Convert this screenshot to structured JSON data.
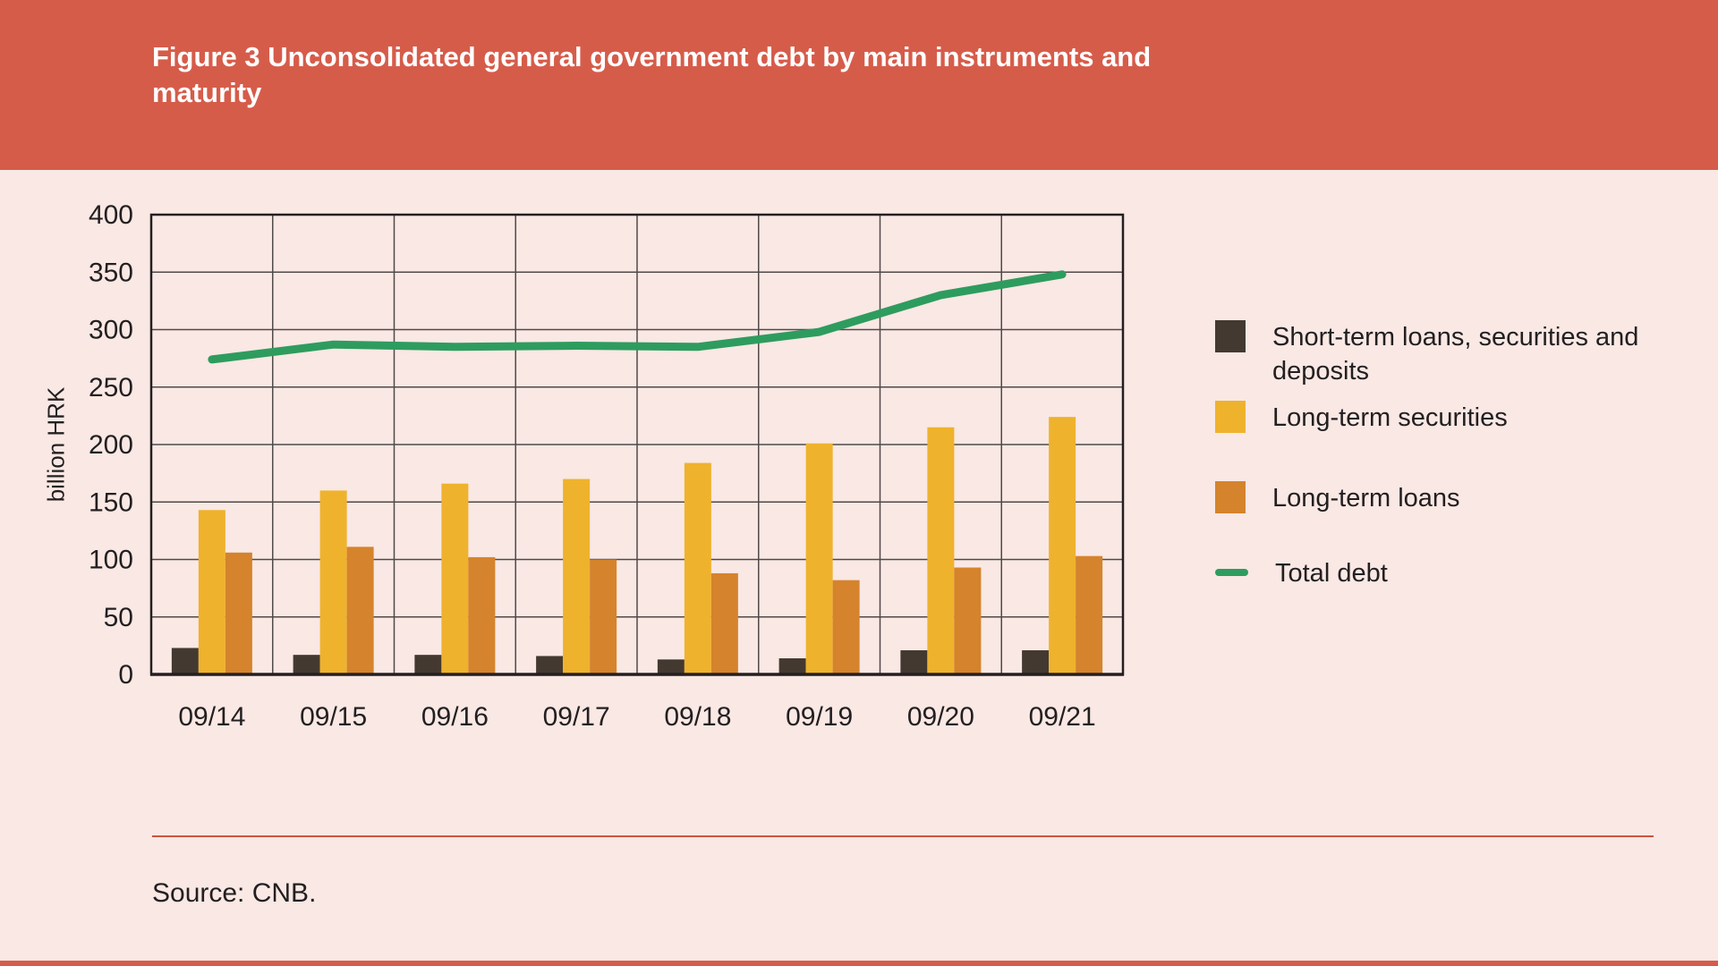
{
  "header": {
    "title": "Figure 3 Unconsolidated general government debt by main instruments and\nmaturity"
  },
  "y_axis": {
    "title": "billion HRK"
  },
  "source": {
    "text": "Source: CNB."
  },
  "colors": {
    "header_band": "#d65c4a",
    "page_background": "#f9e8e4",
    "grid": "#4f4a48",
    "text": "#231f20",
    "short_term": "#443930",
    "long_term_securities": "#efb22d",
    "long_term_loans": "#d5832c",
    "total_debt": "#2e9c5e",
    "source_rule": "#cc5340",
    "title_text": "#ffffff"
  },
  "legend": [
    {
      "label": "Short-term loans, securities and deposits",
      "kind": "swatch",
      "color": "#443930"
    },
    {
      "label": "Long-term securities",
      "kind": "swatch",
      "color": "#efb22d"
    },
    {
      "label": "Long-term loans",
      "kind": "swatch",
      "color": "#d5832c"
    },
    {
      "label": "Total debt",
      "kind": "line",
      "color": "#2e9c5e"
    }
  ],
  "chart_data": {
    "type": "bar",
    "title": "Figure 3 Unconsolidated general government debt by main instruments and maturity",
    "xlabel": "",
    "ylabel": "billion HRK",
    "ylim": [
      0,
      400
    ],
    "ytick_step": 50,
    "grid": true,
    "legend_position": "right",
    "categories": [
      "09/14",
      "09/15",
      "09/16",
      "09/17",
      "09/18",
      "09/19",
      "09/20",
      "09/21"
    ],
    "series": [
      {
        "name": "Short-term loans, securities and deposits",
        "type": "bar",
        "color": "#443930",
        "values": [
          23,
          17,
          17,
          16,
          13,
          14,
          21,
          21
        ]
      },
      {
        "name": "Long-term securities",
        "type": "bar",
        "color": "#efb22d",
        "values": [
          143,
          160,
          166,
          170,
          184,
          201,
          215,
          224
        ]
      },
      {
        "name": "Long-term loans",
        "type": "bar",
        "color": "#d5832c",
        "values": [
          106,
          111,
          102,
          100,
          88,
          82,
          93,
          103
        ]
      },
      {
        "name": "Total debt",
        "type": "line",
        "color": "#2e9c5e",
        "values": [
          274,
          287,
          285,
          286,
          285,
          298,
          330,
          348
        ]
      }
    ]
  }
}
